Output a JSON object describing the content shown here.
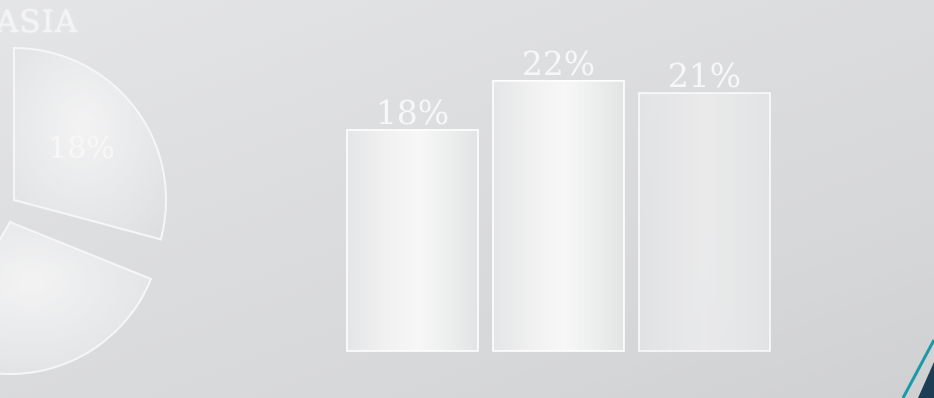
{
  "region_title": "ASIA",
  "chart_data": [
    {
      "type": "pie",
      "title": "",
      "slices": [
        {
          "label": "18%",
          "value": 18
        },
        {
          "label": "",
          "value": null
        },
        {
          "label": "",
          "value": null
        }
      ],
      "note": "pie partially cropped at left edge"
    },
    {
      "type": "bar",
      "title": "",
      "xlabel": "",
      "ylabel": "",
      "categories": [
        "",
        "",
        ""
      ],
      "values": [
        18,
        22,
        21
      ],
      "value_labels": [
        "18%",
        "22%",
        "21%"
      ],
      "ylim": [
        0,
        25
      ]
    }
  ],
  "colors": {
    "background": "#dcdddf",
    "bar_fill": "#f2f2f3",
    "bar_outline": "#ffffff",
    "label_text": "#f7f7f8",
    "accent_line": "#1a9aa8",
    "accent_dark": "#1d3d55"
  }
}
